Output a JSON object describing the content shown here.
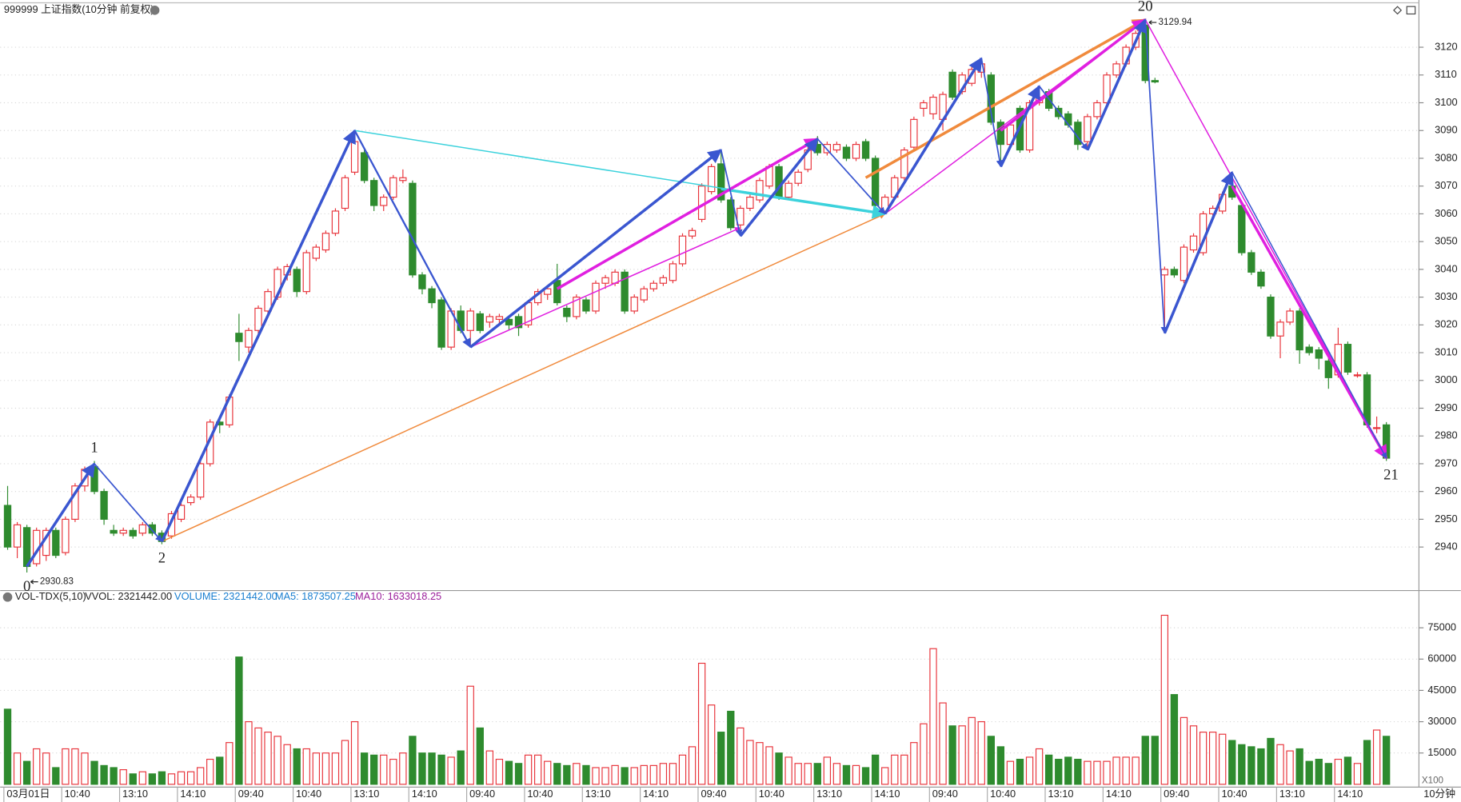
{
  "chart_data": {
    "type": "candlestick",
    "title": "999999 上证指数(10分钟 前复权)",
    "up_color": "#e8333a",
    "down_color": "#2e8b2e",
    "ylim": [
      2925,
      3136
    ],
    "yticks": [
      2940,
      2950,
      2960,
      2970,
      2980,
      2990,
      3000,
      3010,
      3020,
      3030,
      3040,
      3050,
      3060,
      3070,
      3080,
      3090,
      3100,
      3110,
      3120
    ],
    "grid": true,
    "ohlc": [
      [
        2955,
        2962,
        2939,
        2940
      ],
      [
        2940,
        2949,
        2936,
        2948
      ],
      [
        2947,
        2948,
        2930.83,
        2933
      ],
      [
        2934,
        2947,
        2933,
        2946
      ],
      [
        2937,
        2947,
        2935,
        2946
      ],
      [
        2946,
        2947,
        2936,
        2937
      ],
      [
        2938,
        2951,
        2937,
        2950
      ],
      [
        2950,
        2963,
        2949,
        2962
      ],
      [
        2962,
        2969,
        2960,
        2968
      ],
      [
        2969,
        2971,
        2959,
        2960
      ],
      [
        2960,
        2961,
        2948,
        2950
      ],
      [
        2946,
        2948,
        2944,
        2945
      ],
      [
        2945,
        2947,
        2944,
        2946
      ],
      [
        2946,
        2947,
        2943,
        2944
      ],
      [
        2945,
        2949,
        2944,
        2948
      ],
      [
        2948,
        2949,
        2944,
        2945
      ],
      [
        2945,
        2946,
        2941,
        2942
      ],
      [
        2944,
        2953,
        2943,
        2952
      ],
      [
        2950,
        2956,
        2949,
        2955
      ],
      [
        2956,
        2959,
        2955,
        2958
      ],
      [
        2958,
        2971,
        2957,
        2970
      ],
      [
        2970,
        2986,
        2969,
        2985
      ],
      [
        2985,
        2987,
        2981,
        2984
      ],
      [
        2984,
        2995,
        2983,
        2994
      ],
      [
        3017,
        3024,
        3007,
        3014
      ],
      [
        3012,
        3019,
        3010,
        3018
      ],
      [
        3018,
        3027,
        3016,
        3026
      ],
      [
        3025,
        3033,
        3023,
        3032
      ],
      [
        3030,
        3041,
        3029,
        3040
      ],
      [
        3038,
        3042,
        3036,
        3041
      ],
      [
        3040,
        3041,
        3030,
        3032
      ],
      [
        3032,
        3047,
        3031,
        3046
      ],
      [
        3044,
        3049,
        3043,
        3048
      ],
      [
        3047,
        3054,
        3046,
        3053
      ],
      [
        3053,
        3062,
        3052,
        3061
      ],
      [
        3062,
        3074,
        3061,
        3073
      ],
      [
        3075,
        3090,
        3074,
        3086
      ],
      [
        3082,
        3083,
        3071,
        3072
      ],
      [
        3072,
        3073,
        3061,
        3063
      ],
      [
        3063,
        3067,
        3061,
        3066
      ],
      [
        3066,
        3074,
        3065,
        3073
      ],
      [
        3072,
        3076,
        3071,
        3073
      ],
      [
        3071,
        3072,
        3037,
        3038
      ],
      [
        3038,
        3039,
        3031,
        3033
      ],
      [
        3033,
        3034,
        3026,
        3028
      ],
      [
        3029,
        3030,
        3011,
        3012
      ],
      [
        3012,
        3026,
        3011,
        3025
      ],
      [
        3025,
        3027,
        3017,
        3018
      ],
      [
        3018,
        3026,
        3012,
        3025
      ],
      [
        3024,
        3025,
        3017,
        3018
      ],
      [
        3021,
        3024,
        3019,
        3023
      ],
      [
        3022,
        3024,
        3020,
        3023
      ],
      [
        3022,
        3023,
        3018,
        3020
      ],
      [
        3023,
        3024,
        3016,
        3019
      ],
      [
        3020,
        3029,
        3019,
        3028
      ],
      [
        3028,
        3033,
        3027,
        3032
      ],
      [
        3031,
        3034,
        3029,
        3033
      ],
      [
        3036,
        3042,
        3027,
        3028
      ],
      [
        3026,
        3027,
        3021,
        3023
      ],
      [
        3023,
        3031,
        3022,
        3030
      ],
      [
        3029,
        3030,
        3024,
        3025
      ],
      [
        3025,
        3036,
        3024,
        3035
      ],
      [
        3035,
        3038,
        3033,
        3037
      ],
      [
        3035,
        3040,
        3034,
        3039
      ],
      [
        3039,
        3040,
        3024,
        3025
      ],
      [
        3025,
        3031,
        3024,
        3030
      ],
      [
        3029,
        3034,
        3028,
        3033
      ],
      [
        3033,
        3036,
        3032,
        3035
      ],
      [
        3035,
        3038,
        3034,
        3037
      ],
      [
        3036,
        3043,
        3035,
        3042
      ],
      [
        3042,
        3053,
        3041,
        3052
      ],
      [
        3052,
        3055,
        3051,
        3054
      ],
      [
        3058,
        3071,
        3057,
        3070
      ],
      [
        3068,
        3078,
        3067,
        3077
      ],
      [
        3078,
        3083,
        3064,
        3065
      ],
      [
        3065,
        3066,
        3054,
        3055
      ],
      [
        3056,
        3063,
        3052,
        3062
      ],
      [
        3062,
        3067,
        3061,
        3066
      ],
      [
        3065,
        3073,
        3064,
        3072
      ],
      [
        3070,
        3078,
        3069,
        3077
      ],
      [
        3077,
        3078,
        3065,
        3066
      ],
      [
        3066,
        3072,
        3065,
        3071
      ],
      [
        3071,
        3076,
        3070,
        3075
      ],
      [
        3076,
        3084,
        3075,
        3083
      ],
      [
        3085,
        3088,
        3081,
        3082
      ],
      [
        3082,
        3086,
        3081,
        3085
      ],
      [
        3083,
        3086,
        3082,
        3085
      ],
      [
        3084,
        3085,
        3079,
        3080
      ],
      [
        3080,
        3086,
        3079,
        3085
      ],
      [
        3086,
        3087,
        3079,
        3080
      ],
      [
        3080,
        3081,
        3062,
        3063
      ],
      [
        3061,
        3067,
        3060,
        3066
      ],
      [
        3066,
        3074,
        3065,
        3073
      ],
      [
        3073,
        3084,
        3072,
        3083
      ],
      [
        3084,
        3095,
        3083,
        3094
      ],
      [
        3098,
        3101,
        3095,
        3100
      ],
      [
        3096,
        3103,
        3094,
        3102
      ],
      [
        3094,
        3104,
        3090,
        3103
      ],
      [
        3111,
        3112,
        3101,
        3102
      ],
      [
        3104,
        3111,
        3103,
        3110
      ],
      [
        3107,
        3113,
        3106,
        3112
      ],
      [
        3111,
        3116,
        3109,
        3114
      ],
      [
        3110,
        3111,
        3092,
        3093
      ],
      [
        3093,
        3094,
        3077,
        3085
      ],
      [
        3085,
        3093,
        3084,
        3092
      ],
      [
        3098,
        3099,
        3082,
        3083
      ],
      [
        3083,
        3101,
        3082,
        3100
      ],
      [
        3100,
        3106,
        3099,
        3102
      ],
      [
        3104,
        3105,
        3097,
        3098
      ],
      [
        3098,
        3099,
        3094,
        3095
      ],
      [
        3096,
        3097,
        3091,
        3092
      ],
      [
        3093,
        3094,
        3083,
        3085
      ],
      [
        3086,
        3096,
        3083,
        3095
      ],
      [
        3095,
        3101,
        3094,
        3100
      ],
      [
        3100,
        3111,
        3099,
        3110
      ],
      [
        3110,
        3115,
        3109,
        3114
      ],
      [
        3114,
        3121,
        3113,
        3120
      ],
      [
        3120,
        3126,
        3119,
        3125
      ],
      [
        3128,
        3129.94,
        3107,
        3108
      ],
      [
        3108,
        3109,
        3107,
        3107.5
      ],
      [
        3038,
        3041,
        3017,
        3040
      ],
      [
        3040,
        3041,
        3037,
        3038
      ],
      [
        3036,
        3049,
        3035,
        3048
      ],
      [
        3047,
        3053,
        3046,
        3052
      ],
      [
        3046,
        3061,
        3045,
        3060
      ],
      [
        3060,
        3063,
        3059,
        3062
      ],
      [
        3061,
        3068,
        3060,
        3067
      ],
      [
        3070,
        3075,
        3065,
        3066
      ],
      [
        3063,
        3064,
        3045,
        3046
      ],
      [
        3046,
        3047,
        3038,
        3039
      ],
      [
        3039,
        3040,
        3033,
        3034
      ],
      [
        3030,
        3031,
        3015,
        3016
      ],
      [
        3016,
        3022,
        3008,
        3021
      ],
      [
        3021,
        3026,
        3020,
        3025
      ],
      [
        3025,
        3026,
        3006,
        3011
      ],
      [
        3012,
        3013,
        3009,
        3010
      ],
      [
        3011,
        3012,
        3004,
        3008
      ],
      [
        3007,
        3008,
        2997,
        3001
      ],
      [
        3002,
        3019,
        3001,
        3013
      ],
      [
        3013,
        3014,
        3002,
        3003
      ],
      [
        3002,
        3003,
        3001,
        3002
      ],
      [
        3002,
        3003,
        2983,
        2984
      ],
      [
        2983,
        2987,
        2981,
        2983
      ],
      [
        2984,
        2985,
        2971,
        2972
      ]
    ],
    "volume": [
      36000,
      15000,
      11000,
      17000,
      15000,
      8000,
      17000,
      17000,
      15000,
      11000,
      9000,
      8000,
      7000,
      5000,
      6000,
      5000,
      6000,
      5000,
      6000,
      6000,
      8000,
      12000,
      13000,
      20000,
      61000,
      30000,
      27000,
      25000,
      23000,
      19000,
      17000,
      17000,
      15000,
      15000,
      15000,
      21000,
      30000,
      15000,
      14000,
      14000,
      12000,
      15000,
      23000,
      15000,
      15000,
      14000,
      13000,
      16000,
      47000,
      27000,
      16000,
      12000,
      11000,
      10000,
      14000,
      14000,
      11000,
      10000,
      9000,
      10000,
      9000,
      8000,
      8000,
      9000,
      8000,
      8000,
      9000,
      9000,
      10000,
      10000,
      14000,
      18000,
      58000,
      38000,
      25000,
      35000,
      27000,
      21000,
      20000,
      18000,
      15000,
      13000,
      10000,
      10000,
      10000,
      13000,
      10000,
      9000,
      9000,
      8000,
      14000,
      8000,
      14000,
      14000,
      20000,
      29000,
      65000,
      39000,
      28000,
      28000,
      32000,
      30000,
      23000,
      18000,
      11000,
      12000,
      13000,
      17000,
      14000,
      12000,
      13000,
      12000,
      11000,
      11000,
      11000,
      13000,
      13000,
      13000,
      23000,
      23000,
      81000,
      43000,
      32000,
      28000,
      25000,
      25000,
      24000,
      21000,
      19000,
      18000,
      17000,
      22000,
      19000,
      16000,
      17000,
      11000,
      12000,
      10000,
      12000,
      13000,
      10000,
      21000,
      26000,
      23000
    ],
    "volume_ylim": [
      0,
      85700
    ],
    "volume_yticks": [
      15000,
      30000,
      45000,
      60000,
      75000
    ],
    "volume_header": [
      "VOL-TDX(5,10)",
      "VVOL: 2321442.00",
      "VOLUME: 2321442.00",
      "MA5: 1873507.25",
      "MA10: 1633018.25"
    ],
    "volume_unit": "X100",
    "period_label": "10分钟",
    "xticks": [
      {
        "value": 0,
        "label": "03月01日"
      },
      {
        "value": 6,
        "label": "10:40"
      },
      {
        "value": 12,
        "label": "13:10"
      },
      {
        "value": 18,
        "label": "14:10"
      },
      {
        "value": 24,
        "label": "09:40"
      },
      {
        "value": 30,
        "label": "10:40"
      },
      {
        "value": 36,
        "label": "13:10"
      },
      {
        "value": 42,
        "label": "14:10"
      },
      {
        "value": 48,
        "label": "09:40"
      },
      {
        "value": 54,
        "label": "10:40"
      },
      {
        "value": 60,
        "label": "13:10"
      },
      {
        "value": 66,
        "label": "14:10"
      },
      {
        "value": 72,
        "label": "09:40"
      },
      {
        "value": 78,
        "label": "10:40"
      },
      {
        "value": 84,
        "label": "13:10"
      },
      {
        "value": 90,
        "label": "14:10"
      },
      {
        "value": 96,
        "label": "09:40"
      },
      {
        "value": 102,
        "label": "10:40"
      },
      {
        "value": 108,
        "label": "13:10"
      },
      {
        "value": 114,
        "label": "14:10"
      },
      {
        "value": 120,
        "label": "09:40"
      },
      {
        "value": 126,
        "label": "10:40"
      },
      {
        "value": 132,
        "label": "13:10"
      },
      {
        "value": 138,
        "label": "14:10"
      }
    ],
    "trendlines": [
      {
        "from": [
          16,
          2942
        ],
        "to": [
          91,
          3060
        ],
        "color": "#f08a3c",
        "width": 1.3
      },
      {
        "from": [
          89,
          3073
        ],
        "to": [
          118,
          3129.94
        ],
        "color": "#f08a3c",
        "width": 3
      },
      {
        "from": [
          36,
          3090
        ],
        "to": [
          91,
          3060
        ],
        "color": "#3cd2dc",
        "width": 1.3
      },
      {
        "from": [
          74,
          3069
        ],
        "to": [
          91,
          3060
        ],
        "color": "#3cd2dc",
        "width": 3
      },
      {
        "from": [
          48,
          3012
        ],
        "to": [
          76,
          3055
        ],
        "color": "#e020e0",
        "width": 1.3
      },
      {
        "from": [
          57,
          3033
        ],
        "to": [
          84,
          3087
        ],
        "color": "#e020e0",
        "width": 3
      },
      {
        "from": [
          91,
          3060
        ],
        "to": [
          118,
          3129.94
        ],
        "color": "#e020e0",
        "width": 1.3
      },
      {
        "from": [
          103,
          3090
        ],
        "to": [
          118,
          3129.94
        ],
        "color": "#e020e0",
        "width": 3
      },
      {
        "from": [
          118,
          3129.94
        ],
        "to": [
          143,
          2972
        ],
        "color": "#e020e0",
        "width": 1.3
      },
      {
        "from": [
          127,
          3070
        ],
        "to": [
          143,
          2972
        ],
        "color": "#e020e0",
        "width": 3
      },
      {
        "from": [
          127,
          3075
        ],
        "to": [
          143,
          2972
        ],
        "color": "#3a56d0",
        "width": 1.3
      },
      {
        "from": [
          2,
          2933
        ],
        "to": [
          9,
          2970
        ],
        "color": "#3a56d0",
        "width": 3
      },
      {
        "from": [
          9,
          2970
        ],
        "to": [
          16,
          2942
        ],
        "color": "#3a56d0",
        "width": 1.5
      },
      {
        "from": [
          16,
          2942
        ],
        "to": [
          36,
          3090
        ],
        "color": "#3a56d0",
        "width": 3
      },
      {
        "from": [
          36,
          3090
        ],
        "to": [
          48,
          3012
        ],
        "color": "#3a56d0",
        "width": 2
      },
      {
        "from": [
          48,
          3012
        ],
        "to": [
          74,
          3083
        ],
        "color": "#3a56d0",
        "width": 3
      },
      {
        "from": [
          74,
          3083
        ],
        "to": [
          76,
          3052
        ],
        "color": "#3a56d0",
        "width": 1.5
      },
      {
        "from": [
          76,
          3052
        ],
        "to": [
          84,
          3087
        ],
        "color": "#3a56d0",
        "width": 3
      },
      {
        "from": [
          84,
          3087
        ],
        "to": [
          91,
          3060
        ],
        "color": "#3a56d0",
        "width": 1.5
      },
      {
        "from": [
          91,
          3060
        ],
        "to": [
          101,
          3116
        ],
        "color": "#3a56d0",
        "width": 3
      },
      {
        "from": [
          101,
          3116
        ],
        "to": [
          103,
          3077
        ],
        "color": "#3a56d0",
        "width": 1.5
      },
      {
        "from": [
          103,
          3077
        ],
        "to": [
          107,
          3106
        ],
        "color": "#3a56d0",
        "width": 3
      },
      {
        "from": [
          107,
          3106
        ],
        "to": [
          112,
          3083
        ],
        "color": "#3a56d0",
        "width": 1.5
      },
      {
        "from": [
          112,
          3083
        ],
        "to": [
          118,
          3129.94
        ],
        "color": "#3a56d0",
        "width": 3
      },
      {
        "from": [
          118,
          3129.94
        ],
        "to": [
          120,
          3017
        ],
        "color": "#3a56d0",
        "width": 1.5
      },
      {
        "from": [
          120,
          3017
        ],
        "to": [
          127,
          3075
        ],
        "color": "#3a56d0",
        "width": 3
      }
    ],
    "pivots": [
      {
        "bar": 2,
        "price": 2930.83,
        "label": "0"
      },
      {
        "bar": 9,
        "price": 2971,
        "label": "1"
      },
      {
        "bar": 16,
        "price": 2941,
        "label": "2"
      },
      {
        "bar": 118,
        "price": 3129.94,
        "label": "20"
      },
      {
        "bar": 143,
        "price": 2971,
        "label": "21"
      }
    ],
    "price_labels": [
      {
        "bar": 2,
        "value": 2930.83
      },
      {
        "bar": 118,
        "value": 3129.94
      }
    ]
  }
}
